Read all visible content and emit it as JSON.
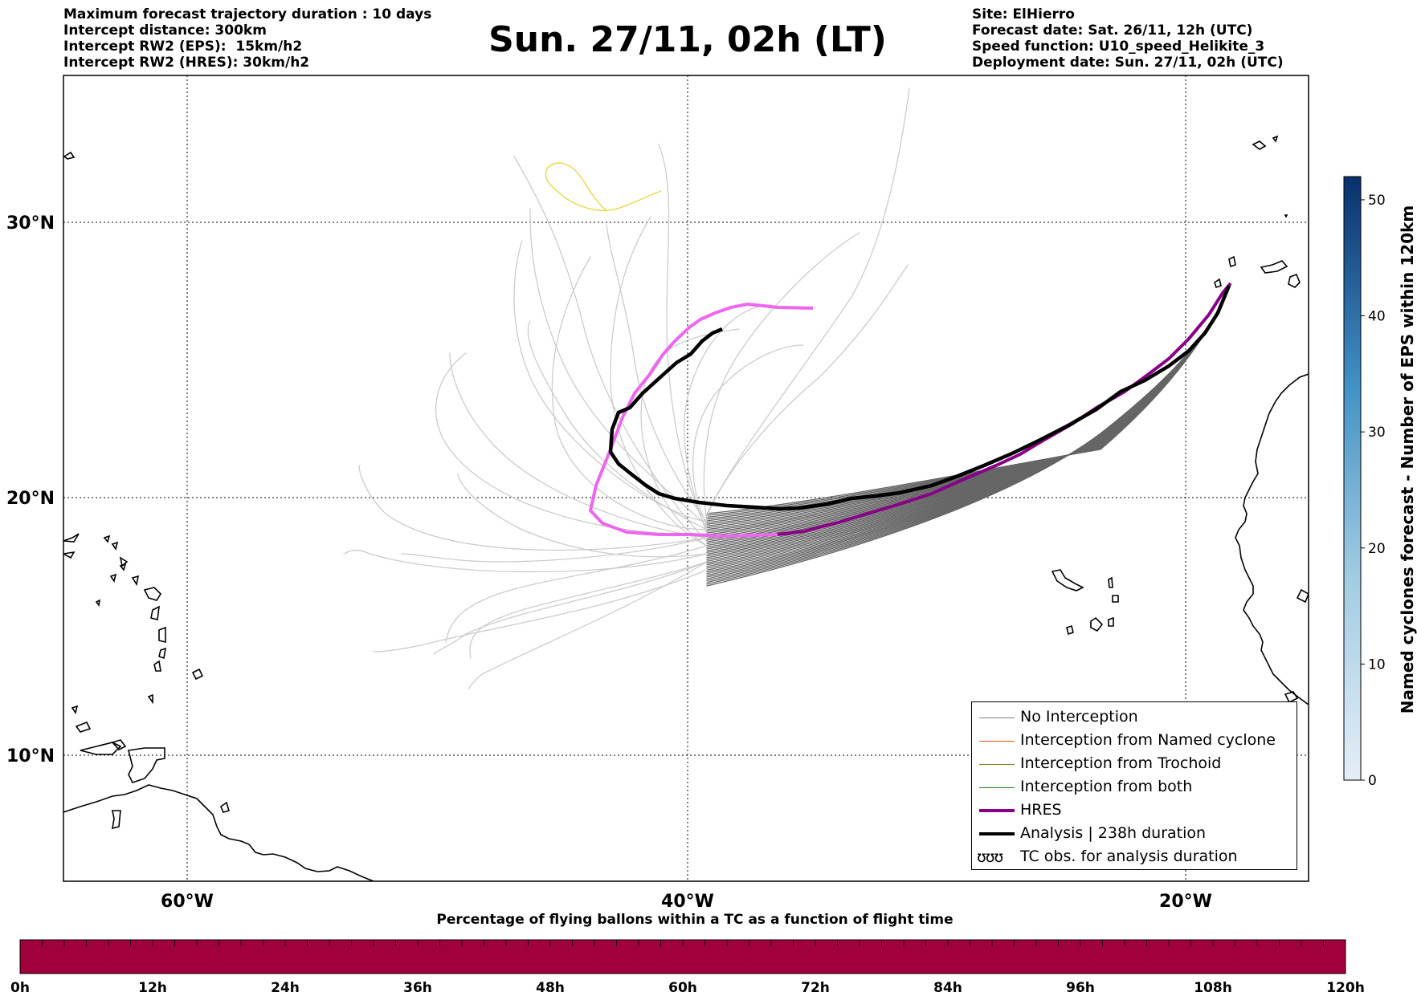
{
  "header": {
    "left_lines": [
      "Maximum forecast trajectory duration : 10 days",
      "Intercept distance: 300km",
      "Intercept RW2 (EPS):  15km/h2",
      "Intercept RW2 (HRES): 30km/h2"
    ],
    "title": "Sun. 27/11, 02h (LT)",
    "right_lines": [
      "Site: ElHierro",
      "Forecast date: Sat. 26/11, 12h (UTC)",
      "Speed function: U10_speed_Helikite_3",
      "Deployment date: Sun. 27/11, 02h (UTC)"
    ]
  },
  "map": {
    "lat_labels": [
      "30°N",
      "20°N",
      "10°N"
    ],
    "lon_labels": [
      "60°W",
      "40°W",
      "20°W"
    ],
    "colors": {
      "eps_far": "#cccccc",
      "eps_near": "#666666",
      "hres_old": "#ee66ee",
      "hres_recent": "#880088",
      "analysis": "#000000",
      "yellow_track": "#e8d84a"
    }
  },
  "legend": {
    "items": [
      {
        "label": "No Interception",
        "color": "#808080"
      },
      {
        "label": "Interception from Named cyclone",
        "color": "#e8531a"
      },
      {
        "label": "Interception from Trochoid",
        "color": "#7f7f1a"
      },
      {
        "label": "Interception from both",
        "color": "#1a7f1a"
      },
      {
        "label": "HRES",
        "color": "#880088"
      },
      {
        "label": "Analysis | 238h duration",
        "color": "#000000"
      },
      {
        "label": "TC obs. for analysis duration",
        "symbol": "ʊʊʊ"
      }
    ]
  },
  "colorbar": {
    "label": "Named cyclones forecast - Number of EPS within 120km",
    "ticks": [
      "0",
      "10",
      "20",
      "30",
      "40",
      "50"
    ],
    "max": 52,
    "color_low": "#e4eef8",
    "color_high": "#08306b"
  },
  "time_bar": {
    "title": "Percentage of flying ballons within a TC as a function of flight time",
    "ticks": [
      "0h",
      "12h",
      "24h",
      "36h",
      "48h",
      "60h",
      "72h",
      "84h",
      "96h",
      "108h",
      "120h"
    ],
    "fill_color": "#a0003c"
  }
}
